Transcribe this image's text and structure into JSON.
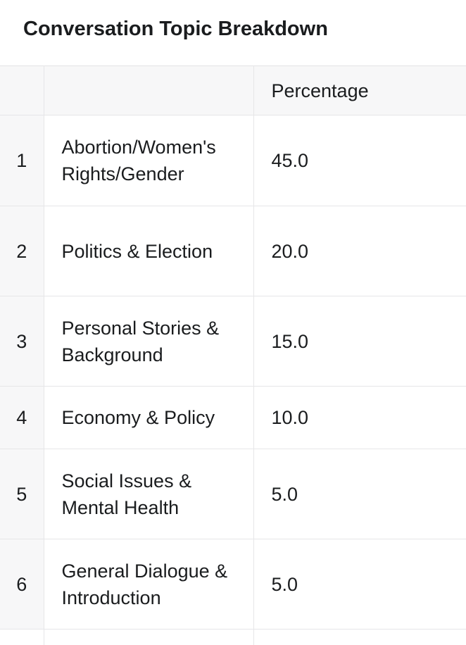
{
  "title": "Conversation Topic Breakdown",
  "chart_data": {
    "type": "table",
    "title": "Conversation Topic Breakdown",
    "columns": [
      "",
      "",
      "Percentage"
    ],
    "rows": [
      {
        "index": "1",
        "topic": "Abortion/Women's Rights/Gender",
        "percentage": "45.0"
      },
      {
        "index": "2",
        "topic": "Politics & Election",
        "percentage": "20.0"
      },
      {
        "index": "3",
        "topic": "Personal Stories & Background",
        "percentage": "15.0"
      },
      {
        "index": "4",
        "topic": "Economy & Policy",
        "percentage": "10.0"
      },
      {
        "index": "5",
        "topic": "Social Issues & Mental Health",
        "percentage": "5.0"
      },
      {
        "index": "6",
        "topic": "General Dialogue & Introduction",
        "percentage": "5.0"
      }
    ],
    "values_unit": "percent",
    "layout": {
      "index_column": true,
      "header_background": true,
      "grid": true
    }
  },
  "colors": {
    "page_background": "#ffffff",
    "header_background": "#f7f7f8",
    "border": "#e6e6e8",
    "text": "#1a1c1e"
  }
}
